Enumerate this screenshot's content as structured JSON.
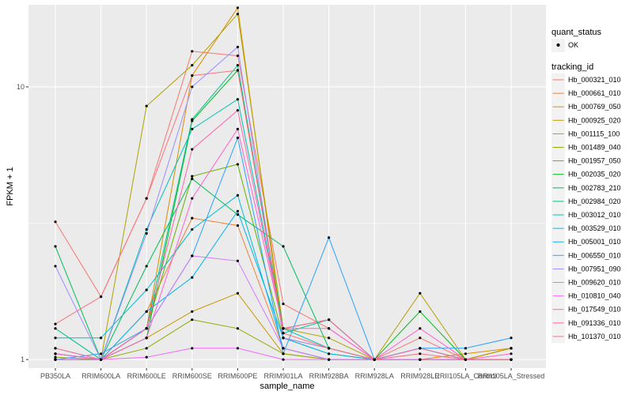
{
  "chart_data": {
    "type": "line",
    "title": "",
    "xlabel": "sample_name",
    "ylabel": "FPKM + 1",
    "yscale": "log10",
    "ylim": [
      0.93,
      20
    ],
    "yticks": [
      1,
      10
    ],
    "ytick_labels": [
      "1",
      "10"
    ],
    "grid": true,
    "legend_position": "right",
    "categories": [
      "PB350LA",
      "RRIM600LA",
      "RRIM600LE",
      "RRIM600SE",
      "RRIM600PE",
      "RRIM901LA",
      "RRIM928BA",
      "RRIM928LA",
      "RRIM928LE",
      "RRII105LA_Control",
      "RRII105LA_Stressed"
    ],
    "shape_legend": {
      "title": "quant_status",
      "items": [
        {
          "label": "OK",
          "marker": "●"
        }
      ]
    },
    "color_legend_title": "tracking_id",
    "series": [
      {
        "name": "Hb_000321_010",
        "color": "#F8766D",
        "values": [
          3.2,
          1.7,
          3.9,
          13.5,
          13.0,
          1.6,
          1.3,
          1.0,
          1.2,
          1.0,
          1.1
        ]
      },
      {
        "name": "Hb_000661_010",
        "color": "#EC8239",
        "values": [
          1.05,
          1.0,
          1.5,
          3.3,
          3.1,
          1.1,
          1.0,
          1.0,
          1.0,
          1.0,
          1.1
        ]
      },
      {
        "name": "Hb_000769_050",
        "color": "#DB8E00",
        "values": [
          1.0,
          1.0,
          1.3,
          11.0,
          19.5,
          1.2,
          1.1,
          1.0,
          1.0,
          1.05,
          1.1
        ]
      },
      {
        "name": "Hb_000925_020",
        "color": "#C79800",
        "values": [
          1.05,
          1.0,
          1.2,
          1.5,
          1.75,
          1.05,
          1.0,
          1.0,
          1.0,
          1.0,
          1.1
        ]
      },
      {
        "name": "Hb_001115_100",
        "color": "#AEA200",
        "values": [
          1.0,
          1.0,
          8.5,
          12.0,
          18.5,
          1.3,
          1.2,
          1.0,
          1.75,
          1.0,
          1.1
        ]
      },
      {
        "name": "Hb_001489_040",
        "color": "#8FAA00",
        "values": [
          1.02,
          1.0,
          1.1,
          1.4,
          1.3,
          1.05,
          1.0,
          1.0,
          1.0,
          1.0,
          1.0
        ]
      },
      {
        "name": "Hb_001957_050",
        "color": "#64B200",
        "values": [
          1.1,
          1.0,
          1.3,
          4.7,
          5.2,
          1.2,
          1.05,
          1.0,
          1.0,
          1.0,
          1.0
        ]
      },
      {
        "name": "Hb_002035_020",
        "color": "#00B81B",
        "values": [
          1.0,
          1.0,
          1.2,
          7.5,
          11.5,
          1.3,
          1.4,
          1.0,
          1.5,
          1.0,
          1.0
        ]
      },
      {
        "name": "Hb_002783_210",
        "color": "#00BD5C",
        "values": [
          2.6,
          1.0,
          2.2,
          4.6,
          3.4,
          2.6,
          1.1,
          1.0,
          1.0,
          1.0,
          1.0
        ]
      },
      {
        "name": "Hb_002984_020",
        "color": "#00C08E",
        "values": [
          1.3,
          1.0,
          1.3,
          7.6,
          12.0,
          1.25,
          1.4,
          1.0,
          1.1,
          1.0,
          1.0
        ]
      },
      {
        "name": "Hb_003012_010",
        "color": "#00C1B2",
        "values": [
          1.0,
          1.0,
          3.0,
          7.0,
          9.0,
          1.3,
          1.1,
          1.0,
          1.1,
          1.0,
          1.0
        ]
      },
      {
        "name": "Hb_003529_010",
        "color": "#00BCD6",
        "values": [
          1.2,
          1.2,
          1.8,
          3.0,
          4.0,
          1.1,
          1.0,
          1.0,
          1.0,
          1.0,
          1.0
        ]
      },
      {
        "name": "Hb_005001_010",
        "color": "#00B3F2",
        "values": [
          1.05,
          1.0,
          1.5,
          2.0,
          3.5,
          1.2,
          1.05,
          1.0,
          1.0,
          1.0,
          1.0
        ]
      },
      {
        "name": "Hb_006550_010",
        "color": "#29A3FF",
        "values": [
          1.0,
          1.05,
          1.3,
          2.4,
          6.5,
          1.05,
          2.8,
          1.0,
          1.1,
          1.1,
          1.2
        ]
      },
      {
        "name": "Hb_007951_090",
        "color": "#9C8DFF",
        "values": [
          2.2,
          1.0,
          2.9,
          10.0,
          14.0,
          1.2,
          1.1,
          1.0,
          1.0,
          1.0,
          1.0
        ]
      },
      {
        "name": "Hb_009620_010",
        "color": "#D277FF",
        "values": [
          1.0,
          1.0,
          1.3,
          2.4,
          2.3,
          1.1,
          1.0,
          1.0,
          1.0,
          1.0,
          1.0
        ]
      },
      {
        "name": "Hb_010810_040",
        "color": "#F269F6",
        "values": [
          1.0,
          1.0,
          1.02,
          1.1,
          1.1,
          1.0,
          1.0,
          1.0,
          1.0,
          1.0,
          1.0
        ]
      },
      {
        "name": "Hb_017549_010",
        "color": "#FF61D2",
        "values": [
          1.05,
          1.0,
          1.2,
          3.9,
          7.0,
          1.3,
          1.3,
          1.0,
          1.3,
          1.0,
          1.05
        ]
      },
      {
        "name": "Hb_091336_010",
        "color": "#FF65AA",
        "values": [
          1.1,
          1.0,
          1.3,
          5.9,
          8.2,
          1.3,
          1.4,
          1.0,
          1.1,
          1.0,
          1.0
        ]
      },
      {
        "name": "Hb_101370_010",
        "color": "#FC717F",
        "values": [
          1.35,
          1.7,
          3.9,
          11.0,
          11.5,
          1.25,
          1.1,
          1.0,
          1.05,
          1.0,
          1.0
        ]
      }
    ]
  }
}
